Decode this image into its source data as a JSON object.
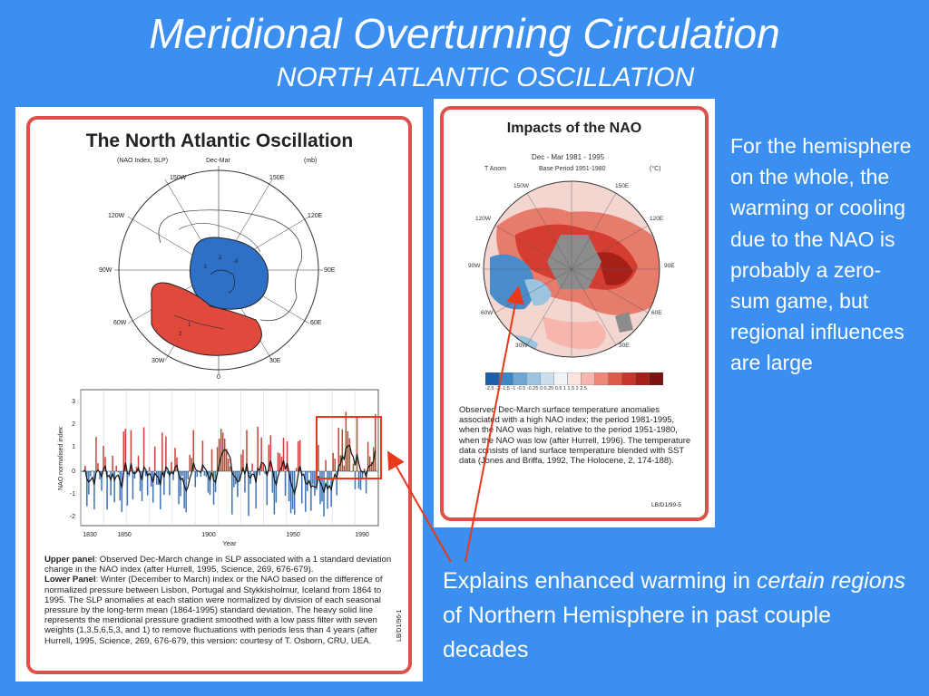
{
  "slide": {
    "title": "Meridional Overturning Circulation",
    "subtitle": "NORTH ATLANTIC OSCILLATION"
  },
  "left_panel": {
    "heading": "The North Atlantic Oscillation",
    "sub_left": "(NAO Index, SLP)",
    "sub_center": "Dec-Mar",
    "sub_right": "(mb)",
    "map_labels": {
      "w150": "150W",
      "e150": "150E",
      "w120": "120W",
      "e120": "120E",
      "w90": "90W",
      "e90": "90E",
      "w60": "60W",
      "e60": "60E",
      "w30": "30W",
      "e30": "30E",
      "zero": "0",
      "minus1": "-1",
      "minus2": "-2",
      "minus3": "-3",
      "one": "1",
      "two": "2"
    },
    "chart": {
      "ylabel": "NAO normalised index",
      "xlabel": "Year",
      "yticks": [
        "3",
        "2",
        "1",
        "0",
        "-1",
        "-2"
      ],
      "xticks": [
        "1830",
        "1850",
        "1900",
        "1950",
        "1990"
      ]
    },
    "caption_upper_label": "Upper panel",
    "caption_upper": ": Observed Dec-March change in SLP associated with a 1 standard deviation change in the NAO index (after Hurrell, 1995, Science, 269, 676-679).",
    "caption_lower_label": "Lower Panel",
    "caption_lower": ": Winter (December to March) index or the NAO based on the difference of normalized pressure between Lisbon, Portugal and Stykkisholmur, Iceland from 1864 to 1995. The SLP anomalies at each station were normalized by division of each seasonal pressure by the long-term mean (1864-1995) standard deviation. The heavy solid line represents the meridional pressure gradient smoothed with a low pass filter with seven weights (1,3,5,6,5,3, and 1) to remove fluctuations with periods less than 4 years (after Hurrell, 1995, Science, 269, 676-679, this version: courtesy of T. Osborn, CRU, UEA.",
    "code": "LB/D1/96-1"
  },
  "right_panel": {
    "heading": "Impacts of the NAO",
    "period": "Dec - Mar    1981 - 1995",
    "sub_left": "T Anom",
    "sub_center": "Base Period 1951-1980",
    "sub_right": "(°C)",
    "map_labels": {
      "w150": "150W",
      "e150": "150E",
      "w120": "120W",
      "e120": "120E",
      "w90": "90W",
      "e90": "90E",
      "w60": "60W",
      "e60": "60E",
      "w30": "30W",
      "e30": "30E"
    },
    "legend_ticks": "-2.5   -2   -1.5   -1   -0.5  -0.25   0   0.25   0.5    1    1.5    2    2.5",
    "legend_colors": [
      "#1f5fa8",
      "#3f86c6",
      "#6fa6d4",
      "#9cc3e0",
      "#c9dff0",
      "#eef4f8",
      "#fbe4e0",
      "#f6b6ad",
      "#ee8779",
      "#e05a4c",
      "#c9352b",
      "#a51f1a",
      "#7a1410"
    ],
    "caption": "Observed Dec-March surface temperature anomalies associated with a high NAO index; the period 1981-1995, when the NAO was high, relative to the period 1951-1980, when the NAO was low (after Hurrell, 1996). The temperature data consists of land surface temperature blended with SST data (Jones and Briffa, 1992, The Holocene, 2, 174-188).",
    "code": "LB/D1/99-5"
  },
  "side_text": "For the hemisphere on the whole, the warming or cooling due to the NAO is probably a zero-sum game, but regional influences are large",
  "bottom_text": {
    "part1": "Explains enhanced warming in ",
    "italic": "certain regions",
    "part2": " of Northern Hemisphere in past couple decades"
  }
}
